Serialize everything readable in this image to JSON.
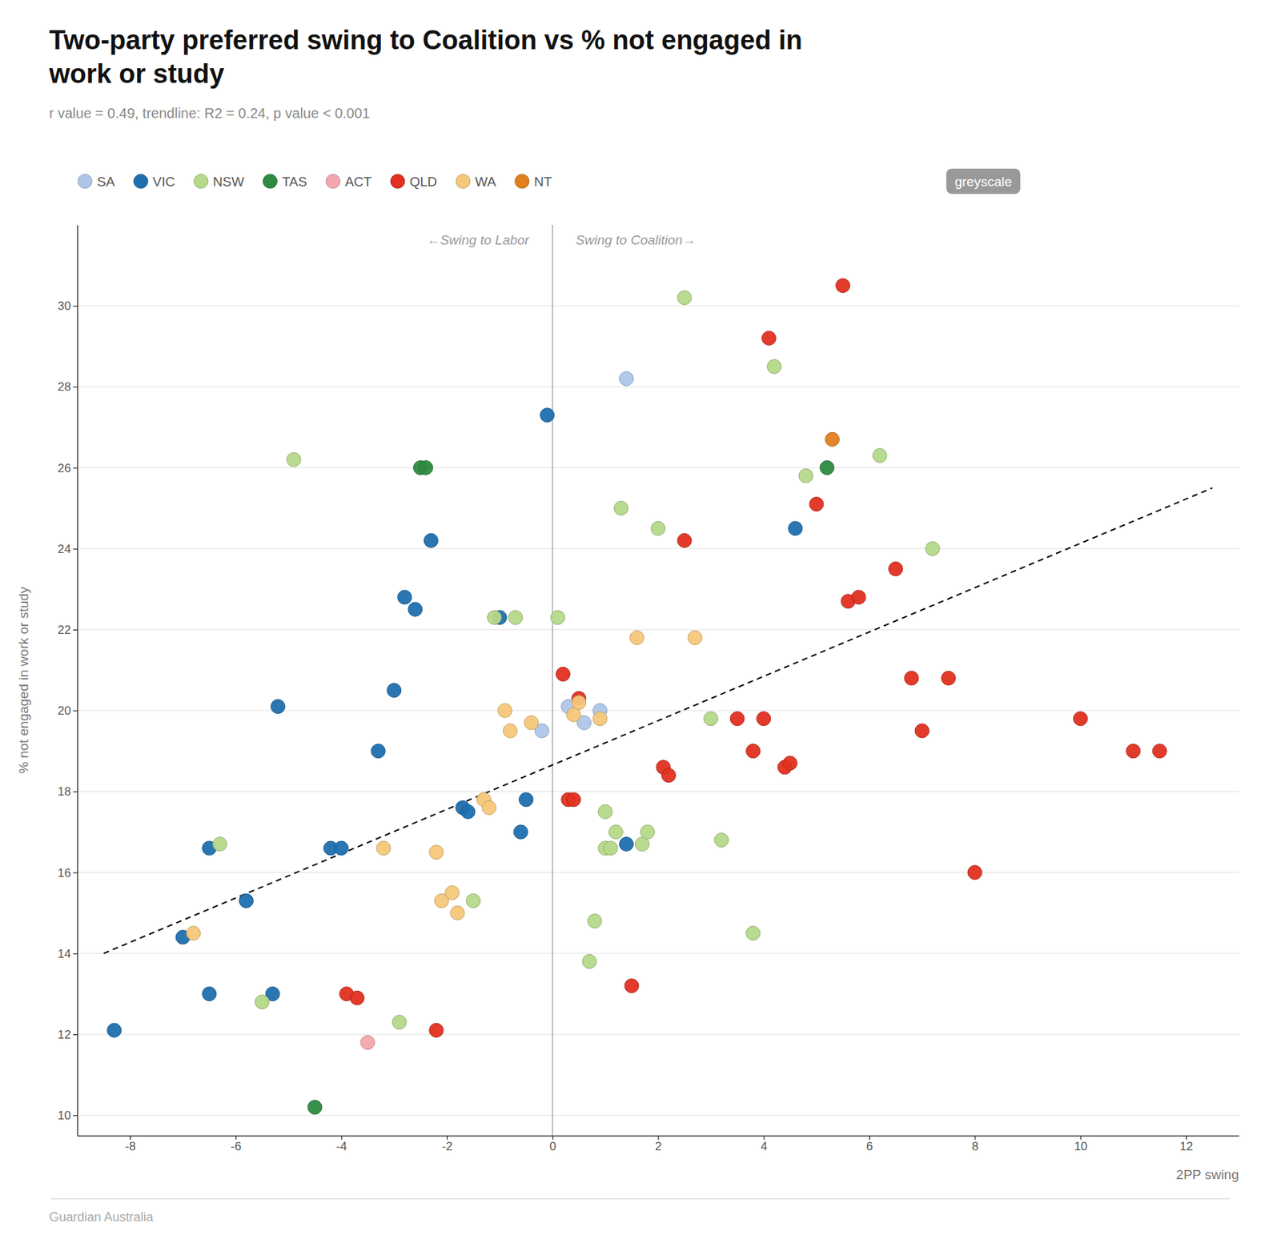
{
  "chart_data": {
    "type": "scatter",
    "title": "Two-party preferred swing to Coalition vs % not engaged in\nwork or study",
    "subtitle": "r value = 0.49, trendline: R2 = 0.24, p value < 0.001",
    "x_label": "2PP swing",
    "y_label": "% not engaged in work or study",
    "xlim": [
      -9,
      13
    ],
    "ylim": [
      9.5,
      32
    ],
    "xticks": [
      -8,
      -6,
      -4,
      -2,
      0,
      2,
      4,
      6,
      8,
      10,
      12
    ],
    "yticks": [
      10,
      12,
      14,
      16,
      18,
      20,
      22,
      24,
      26,
      28,
      30
    ],
    "grid": "y",
    "legend": "top",
    "series": [
      {
        "name": "SA",
        "color": "#aec6e8",
        "marker": "circle",
        "x": [
          -0.2,
          0.3,
          0.6,
          0.9,
          1.4
        ],
        "values": [
          19.5,
          20.1,
          19.7,
          20.0,
          28.2
        ]
      },
      {
        "name": "VIC",
        "color": "#1f6faf",
        "marker": "circle",
        "x": [
          -8.3,
          -7.0,
          -6.5,
          -6.5,
          -5.8,
          -5.3,
          -5.2,
          -4.2,
          -4.0,
          -3.3,
          -3.0,
          -2.8,
          -2.6,
          -2.3,
          -1.7,
          -1.6,
          -1.0,
          -0.6,
          -0.5,
          -0.1,
          1.4,
          4.6
        ],
        "values": [
          12.1,
          14.4,
          13.0,
          16.6,
          15.3,
          13.0,
          20.1,
          16.6,
          16.6,
          19.0,
          20.5,
          22.8,
          22.5,
          24.2,
          17.6,
          17.5,
          22.3,
          17.0,
          17.8,
          27.3,
          16.7,
          24.5
        ]
      },
      {
        "name": "NSW",
        "color": "#b5d98a",
        "marker": "circle",
        "x": [
          -6.3,
          -5.5,
          -4.9,
          -2.9,
          -1.5,
          -1.1,
          -0.7,
          0.1,
          0.7,
          0.8,
          1.0,
          1.0,
          1.1,
          1.2,
          1.3,
          1.7,
          1.8,
          2.0,
          2.5,
          3.0,
          3.2,
          3.8,
          4.2,
          4.8,
          6.2,
          7.2
        ],
        "values": [
          16.7,
          12.8,
          26.2,
          12.3,
          15.3,
          22.3,
          22.3,
          22.3,
          13.8,
          14.8,
          16.6,
          17.5,
          16.6,
          17.0,
          25.0,
          16.7,
          17.0,
          24.5,
          30.2,
          19.8,
          16.8,
          14.5,
          28.5,
          25.8,
          26.3,
          24.0
        ]
      },
      {
        "name": "TAS",
        "color": "#2d8a40",
        "marker": "circle",
        "x": [
          -4.5,
          -2.5,
          -2.4,
          5.2
        ],
        "values": [
          10.2,
          26.0,
          26.0,
          26.0
        ]
      },
      {
        "name": "ACT",
        "color": "#f4a7b0",
        "marker": "circle",
        "x": [
          -3.5
        ],
        "values": [
          11.8
        ]
      },
      {
        "name": "QLD",
        "color": "#e03020",
        "marker": "circle",
        "x": [
          -3.9,
          -3.7,
          -2.2,
          0.2,
          0.3,
          0.4,
          0.5,
          1.5,
          2.1,
          2.2,
          2.5,
          3.5,
          3.8,
          4.0,
          4.1,
          4.4,
          4.5,
          5.0,
          5.5,
          5.6,
          5.8,
          6.5,
          6.8,
          7.0,
          7.5,
          8.0,
          10.0,
          11.0,
          11.5
        ],
        "values": [
          13.0,
          12.9,
          12.1,
          20.9,
          17.8,
          17.8,
          20.3,
          13.2,
          18.6,
          18.4,
          24.2,
          19.8,
          19.0,
          19.8,
          29.2,
          18.6,
          18.7,
          25.1,
          30.5,
          22.7,
          22.8,
          23.5,
          20.8,
          19.5,
          20.8,
          16.0,
          19.8,
          19.0,
          19.0
        ]
      },
      {
        "name": "WA",
        "color": "#f5c87a",
        "marker": "circle",
        "x": [
          -6.8,
          -3.2,
          -2.2,
          -2.1,
          -1.9,
          -1.8,
          -1.3,
          -1.2,
          -0.9,
          -0.8,
          -0.4,
          0.4,
          0.5,
          0.9,
          1.6,
          2.7
        ],
        "values": [
          14.5,
          16.6,
          16.5,
          15.3,
          15.5,
          15.0,
          17.8,
          17.6,
          20.0,
          19.5,
          19.7,
          19.9,
          20.2,
          19.8,
          21.8,
          21.8
        ]
      },
      {
        "name": "NT",
        "color": "#e08020",
        "marker": "circle",
        "x": [
          5.3
        ],
        "values": [
          26.7
        ]
      }
    ],
    "trendline": {
      "x": [
        -8.5,
        12.5
      ],
      "values": [
        14.0,
        25.5
      ],
      "color": "#000000",
      "line_style": "dashed"
    },
    "reference_line_x": 0,
    "annotations": [
      "←Swing to Labor",
      "Swing to Coalition→"
    ],
    "button": "greyscale",
    "footer": "Guardian Australia"
  }
}
